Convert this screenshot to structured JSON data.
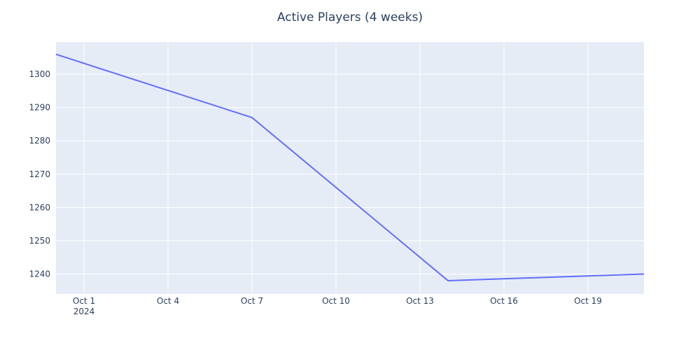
{
  "chart_data": {
    "type": "line",
    "title": "Active Players (4 weeks)",
    "xlabel": "",
    "ylabel": "",
    "x": [
      "2024-09-30",
      "2024-10-07",
      "2024-10-14",
      "2024-10-21"
    ],
    "series": [
      {
        "values": [
          1306,
          1287,
          1238,
          1240
        ]
      }
    ],
    "x_range": [
      "2024-09-30",
      "2024-10-21"
    ],
    "ylim": [
      1234,
      1309.7
    ],
    "x_ticks": [
      {
        "date": "2024-10-01",
        "label": "Oct 1",
        "sublabel": "2024"
      },
      {
        "date": "2024-10-04",
        "label": "Oct 4"
      },
      {
        "date": "2024-10-07",
        "label": "Oct 7"
      },
      {
        "date": "2024-10-10",
        "label": "Oct 10"
      },
      {
        "date": "2024-10-13",
        "label": "Oct 13"
      },
      {
        "date": "2024-10-16",
        "label": "Oct 16"
      },
      {
        "date": "2024-10-19",
        "label": "Oct 19"
      }
    ],
    "y_ticks": [
      1240,
      1250,
      1260,
      1270,
      1280,
      1290,
      1300
    ],
    "grid": true,
    "legend": "none",
    "colors": {
      "line": "#636efa",
      "plot_bg": "#e5ecf6",
      "grid": "#ffffff",
      "text": "#2a3f5f"
    }
  }
}
